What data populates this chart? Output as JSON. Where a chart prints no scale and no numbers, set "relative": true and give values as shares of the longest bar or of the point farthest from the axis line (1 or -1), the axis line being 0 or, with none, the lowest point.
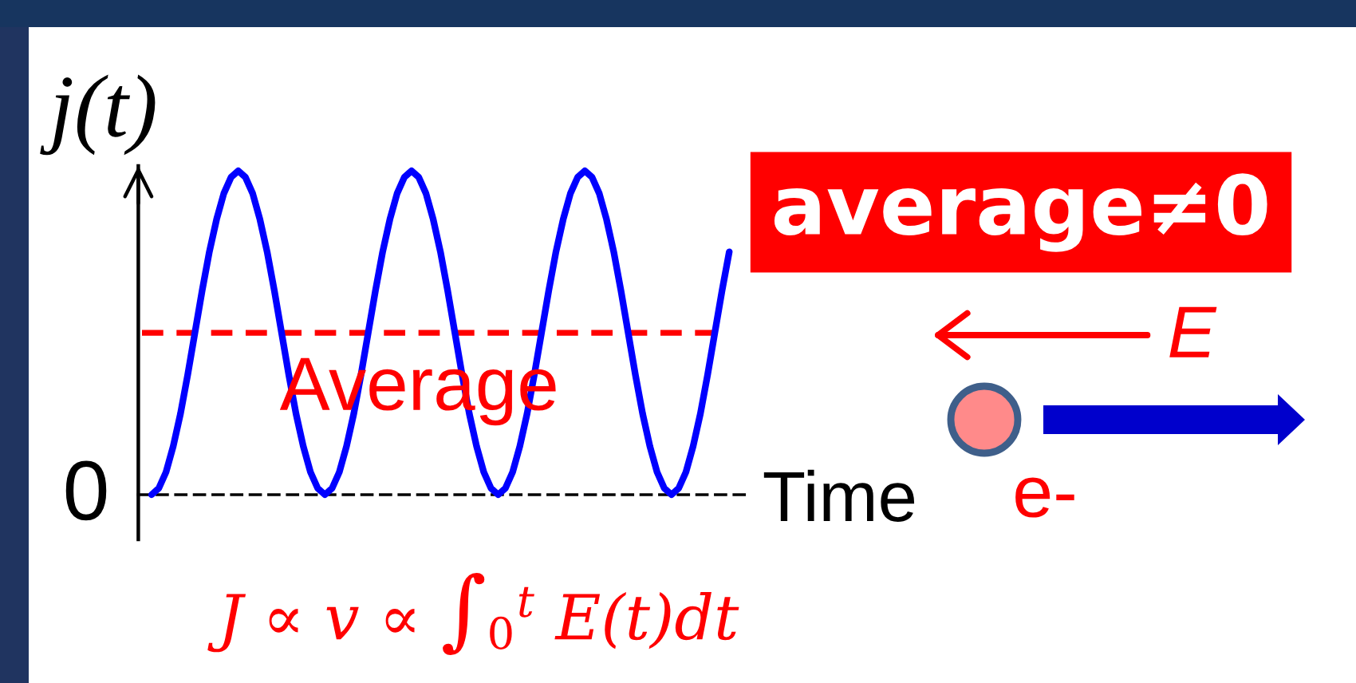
{
  "chart_data": {
    "type": "line",
    "relative": true,
    "ylabel": "j(t)",
    "xlabel": "Time",
    "categories": [
      null,
      null,
      null,
      null,
      null,
      null,
      null,
      null,
      null,
      null,
      null,
      null,
      null,
      null,
      null,
      null,
      null,
      null,
      null,
      null,
      null,
      null,
      null,
      null,
      null,
      null,
      null,
      null,
      null,
      null,
      null,
      null,
      null,
      null,
      null,
      null,
      null,
      null,
      null,
      null,
      null,
      null,
      null,
      null,
      null,
      null,
      null,
      null,
      null,
      null,
      null,
      null,
      null,
      null,
      null,
      null,
      null,
      null,
      null,
      null,
      null,
      null,
      null,
      null,
      null,
      null,
      null,
      null,
      null,
      null,
      null,
      null,
      null,
      null,
      null,
      null,
      null,
      null,
      null,
      null,
      null
    ],
    "series": [
      {
        "color": "#0000ff",
        "values": [
          0,
          0.02,
          0.07,
          0.15,
          0.25,
          0.37,
          0.5,
          0.63,
          0.75,
          0.85,
          0.93,
          0.98,
          1,
          0.98,
          0.93,
          0.85,
          0.75,
          0.63,
          0.5,
          0.37,
          0.25,
          0.15,
          0.07,
          0.02,
          0,
          0.02,
          0.07,
          0.15,
          0.25,
          0.37,
          0.5,
          0.63,
          0.75,
          0.85,
          0.93,
          0.98,
          1,
          0.98,
          0.93,
          0.85,
          0.75,
          0.63,
          0.5,
          0.37,
          0.25,
          0.15,
          0.07,
          0.02,
          0,
          0.02,
          0.07,
          0.15,
          0.25,
          0.37,
          0.5,
          0.63,
          0.75,
          0.85,
          0.93,
          0.98,
          1,
          0.98,
          0.93,
          0.85,
          0.75,
          0.63,
          0.5,
          0.37,
          0.25,
          0.15,
          0.07,
          0.02,
          0,
          0.02,
          0.07,
          0.15,
          0.25,
          0.37,
          0.5,
          0.63,
          0.75
        ]
      }
    ],
    "ref_lines": [
      {
        "axis": "y",
        "value": 0.5,
        "label": "Average",
        "color": "#ff0000",
        "line_style": "dashed"
      }
    ],
    "annotations": [
      "average≠0",
      "E",
      "e-",
      "0",
      "J ∝ v ∝ ∫$_{0}$$^{t}$ E(t)dt"
    ]
  }
}
